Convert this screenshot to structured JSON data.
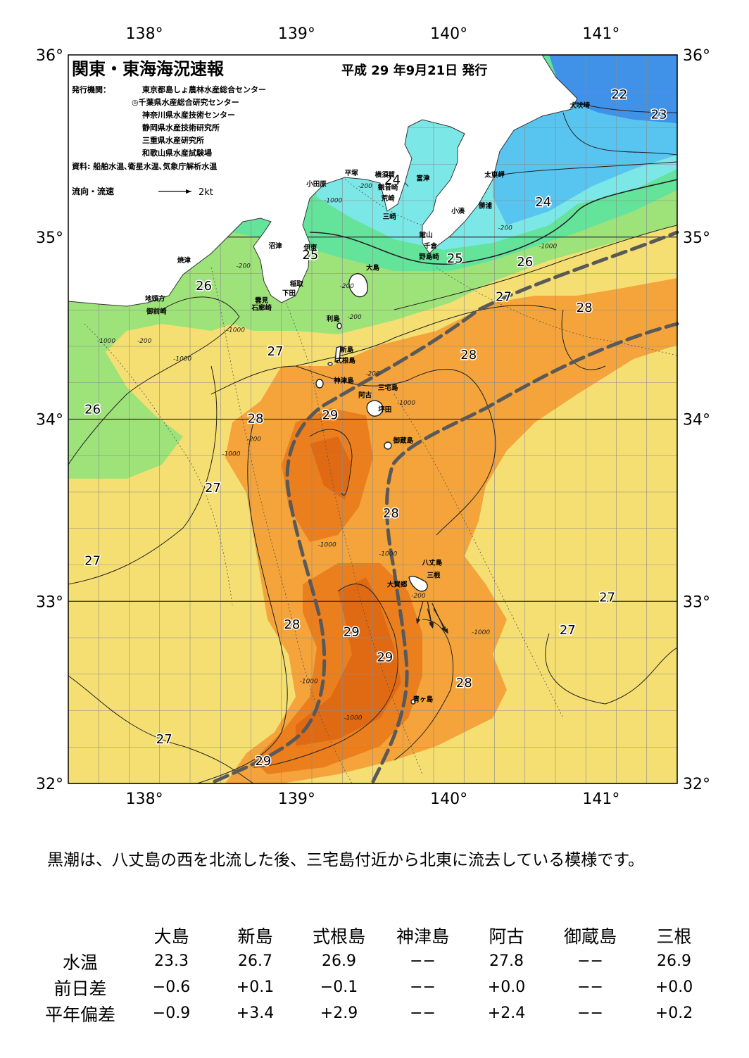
{
  "header": {
    "title": "関東・東海海況速報",
    "issue_date": "平成 29 年9月21日 発行",
    "agencies_label": "発行機関：",
    "agencies": [
      "東京都島しょ農林水産総合センター",
      "◎千葉県水産総合研究センター",
      "神奈川県水産技術センター",
      "静岡県水産技術研究所",
      "三重県水産研究所",
      "和歌山県水産試験場"
    ],
    "sources": "資料: 船舶水温､衛星水温､気象庁解析水温",
    "legend_flow": "流向・流速",
    "legend_speed": "2kt"
  },
  "axes": {
    "lon_labels": [
      "138°",
      "139°",
      "140°",
      "141°"
    ],
    "lat_labels": [
      "36°",
      "35°",
      "34°",
      "33°",
      "32°"
    ]
  },
  "places": [
    {
      "name": "犬吠埼",
      "lon": 140.86,
      "lat": 35.71
    },
    {
      "name": "太東岬",
      "lon": 140.3,
      "lat": 35.33
    },
    {
      "name": "勝浦",
      "lon": 140.24,
      "lat": 35.16
    },
    {
      "name": "小湊",
      "lon": 140.06,
      "lat": 35.13
    },
    {
      "name": "富津",
      "lon": 139.83,
      "lat": 35.31
    },
    {
      "name": "平塚",
      "lon": 139.36,
      "lat": 35.34
    },
    {
      "name": "横須賀",
      "lon": 139.58,
      "lat": 35.33
    },
    {
      "name": "観音崎",
      "lon": 139.6,
      "lat": 35.26
    },
    {
      "name": "荒崎",
      "lon": 139.6,
      "lat": 35.2
    },
    {
      "name": "三崎",
      "lon": 139.61,
      "lat": 35.1
    },
    {
      "name": "小田原",
      "lon": 139.13,
      "lat": 35.28
    },
    {
      "name": "館山",
      "lon": 139.85,
      "lat": 35.0
    },
    {
      "name": "千倉",
      "lon": 139.88,
      "lat": 34.94
    },
    {
      "name": "野島崎",
      "lon": 139.87,
      "lat": 34.88
    },
    {
      "name": "沼津",
      "lon": 138.86,
      "lat": 34.94
    },
    {
      "name": "焼津",
      "lon": 138.26,
      "lat": 34.86
    },
    {
      "name": "伊東",
      "lon": 139.09,
      "lat": 34.93
    },
    {
      "name": "稲取",
      "lon": 139.0,
      "lat": 34.73
    },
    {
      "name": "下田",
      "lon": 138.95,
      "lat": 34.68
    },
    {
      "name": "雲見",
      "lon": 138.77,
      "lat": 34.64
    },
    {
      "name": "石廊崎",
      "lon": 138.77,
      "lat": 34.6
    },
    {
      "name": "地頭方",
      "lon": 138.07,
      "lat": 34.65
    },
    {
      "name": "御前崎",
      "lon": 138.08,
      "lat": 34.58
    },
    {
      "name": "大島",
      "lon": 139.5,
      "lat": 34.82
    },
    {
      "name": "利島",
      "lon": 139.24,
      "lat": 34.54
    },
    {
      "name": "新島",
      "lon": 139.33,
      "lat": 34.37
    },
    {
      "name": "式根島",
      "lon": 139.32,
      "lat": 34.31
    },
    {
      "name": "神津島",
      "lon": 139.31,
      "lat": 34.2
    },
    {
      "name": "三宅島",
      "lon": 139.6,
      "lat": 34.16
    },
    {
      "name": "阿古",
      "lon": 139.45,
      "lat": 34.12
    },
    {
      "name": "坪田",
      "lon": 139.58,
      "lat": 34.04
    },
    {
      "name": "御蔵島",
      "lon": 139.7,
      "lat": 33.87
    },
    {
      "name": "八丈島",
      "lon": 139.89,
      "lat": 33.2
    },
    {
      "name": "三根",
      "lon": 139.9,
      "lat": 33.13
    },
    {
      "name": "大賀郷",
      "lon": 139.66,
      "lat": 33.08
    },
    {
      "name": "青ヶ島",
      "lon": 139.83,
      "lat": 32.45
    }
  ],
  "isotherm_labels": [
    {
      "t": "22",
      "lon": 141.12,
      "lat": 35.76
    },
    {
      "t": "23",
      "lon": 141.38,
      "lat": 35.65
    },
    {
      "t": "24",
      "lon": 139.63,
      "lat": 35.29
    },
    {
      "t": "24",
      "lon": 140.62,
      "lat": 35.17
    },
    {
      "t": "25",
      "lon": 139.09,
      "lat": 34.88
    },
    {
      "t": "25",
      "lon": 140.04,
      "lat": 34.86
    },
    {
      "t": "26",
      "lon": 140.5,
      "lat": 34.84
    },
    {
      "t": "26",
      "lon": 138.39,
      "lat": 34.71
    },
    {
      "t": "27",
      "lon": 140.36,
      "lat": 34.65
    },
    {
      "t": "28",
      "lon": 140.89,
      "lat": 34.59
    },
    {
      "t": "27",
      "lon": 138.86,
      "lat": 34.35
    },
    {
      "t": "28",
      "lon": 140.13,
      "lat": 34.33
    },
    {
      "t": "26",
      "lon": 137.66,
      "lat": 34.03
    },
    {
      "t": "28",
      "lon": 138.73,
      "lat": 33.98
    },
    {
      "t": "29",
      "lon": 139.22,
      "lat": 34.0
    },
    {
      "t": "27",
      "lon": 138.45,
      "lat": 33.6
    },
    {
      "t": "28",
      "lon": 139.62,
      "lat": 33.46
    },
    {
      "t": "27",
      "lon": 137.66,
      "lat": 33.2
    },
    {
      "t": "27",
      "lon": 141.04,
      "lat": 33.0
    },
    {
      "t": "28",
      "lon": 138.97,
      "lat": 32.85
    },
    {
      "t": "29",
      "lon": 139.36,
      "lat": 32.81
    },
    {
      "t": "27",
      "lon": 140.78,
      "lat": 32.82
    },
    {
      "t": "29",
      "lon": 139.58,
      "lat": 32.67
    },
    {
      "t": "28",
      "lon": 140.1,
      "lat": 32.53
    },
    {
      "t": "27",
      "lon": 138.13,
      "lat": 32.22
    },
    {
      "t": "29",
      "lon": 138.78,
      "lat": 32.1
    }
  ],
  "depth_labels": [
    {
      "t": "-200",
      "lon": 139.45,
      "lat": 35.27
    },
    {
      "t": "-1000",
      "lon": 139.24,
      "lat": 35.19
    },
    {
      "t": "-200",
      "lon": 140.37,
      "lat": 35.04
    },
    {
      "t": "-1000",
      "lon": 140.65,
      "lat": 34.94
    },
    {
      "t": "-200",
      "lon": 138.65,
      "lat": 34.83
    },
    {
      "t": "-200",
      "lon": 139.33,
      "lat": 34.72
    },
    {
      "t": "-200",
      "lon": 139.38,
      "lat": 34.55
    },
    {
      "t": "-1000",
      "lon": 138.6,
      "lat": 34.48
    },
    {
      "t": "-1000",
      "lon": 137.75,
      "lat": 34.42
    },
    {
      "t": "-200",
      "lon": 138.0,
      "lat": 34.42
    },
    {
      "t": "-1000",
      "lon": 138.25,
      "lat": 34.32
    },
    {
      "t": "-200",
      "lon": 139.5,
      "lat": 34.24
    },
    {
      "t": "-1000",
      "lon": 139.72,
      "lat": 34.08
    },
    {
      "t": "-200",
      "lon": 138.72,
      "lat": 33.88
    },
    {
      "t": "-1000",
      "lon": 138.57,
      "lat": 33.8
    },
    {
      "t": "-1000",
      "lon": 139.2,
      "lat": 33.3
    },
    {
      "t": "-1000",
      "lon": 139.6,
      "lat": 33.25
    },
    {
      "t": "-200",
      "lon": 139.8,
      "lat": 33.02
    },
    {
      "t": "-1000",
      "lon": 140.21,
      "lat": 32.82
    },
    {
      "t": "-1000",
      "lon": 139.08,
      "lat": 32.55
    },
    {
      "t": "-1000",
      "lon": 139.37,
      "lat": 32.35
    }
  ],
  "current_vectors": [
    {
      "lon": 139.83,
      "lat": 33.0,
      "dir_deg": 195,
      "len": 0.8
    },
    {
      "lon": 139.86,
      "lat": 33.0,
      "dir_deg": 170,
      "len": 0.9
    },
    {
      "lon": 139.89,
      "lat": 32.99,
      "dir_deg": 155,
      "len": 1.1
    },
    {
      "lon": 139.9,
      "lat": 32.96,
      "dir_deg": 150,
      "len": 1.0
    },
    {
      "lon": 139.86,
      "lat": 32.96,
      "dir_deg": 165,
      "len": 0.7
    }
  ],
  "comment": "黒潮は、八丈島の西を北流した後、三宅島付近から北東に流去している模様です。",
  "stats": {
    "columns": [
      "大島",
      "新島",
      "式根島",
      "神津島",
      "阿古",
      "御蔵島",
      "三根"
    ],
    "rows": [
      {
        "label": "水温",
        "values": [
          "23.3",
          "26.7",
          "26.9",
          "−−",
          "27.8",
          "−−",
          "26.9"
        ]
      },
      {
        "label": "前日差",
        "values": [
          "−0.6",
          "+0.1",
          "−0.1",
          "−−",
          "+0.0",
          "−−",
          "+0.0"
        ]
      },
      {
        "label": "平年偏差",
        "values": [
          "−0.9",
          "+3.4",
          "+2.9",
          "−−",
          "+2.4",
          "−−",
          "+0.2"
        ]
      }
    ]
  },
  "colors": {
    "t22": "#3f92e8",
    "t23": "#58c4f0",
    "t24": "#7ce7e7",
    "t25": "#64e39b",
    "t26": "#9ee27a",
    "t27": "#f5df73",
    "t28": "#f4a43a",
    "t29": "#eb7f1e",
    "t29_5": "#e06a14",
    "kuroshio": "#595959",
    "land": "#ffffff"
  }
}
